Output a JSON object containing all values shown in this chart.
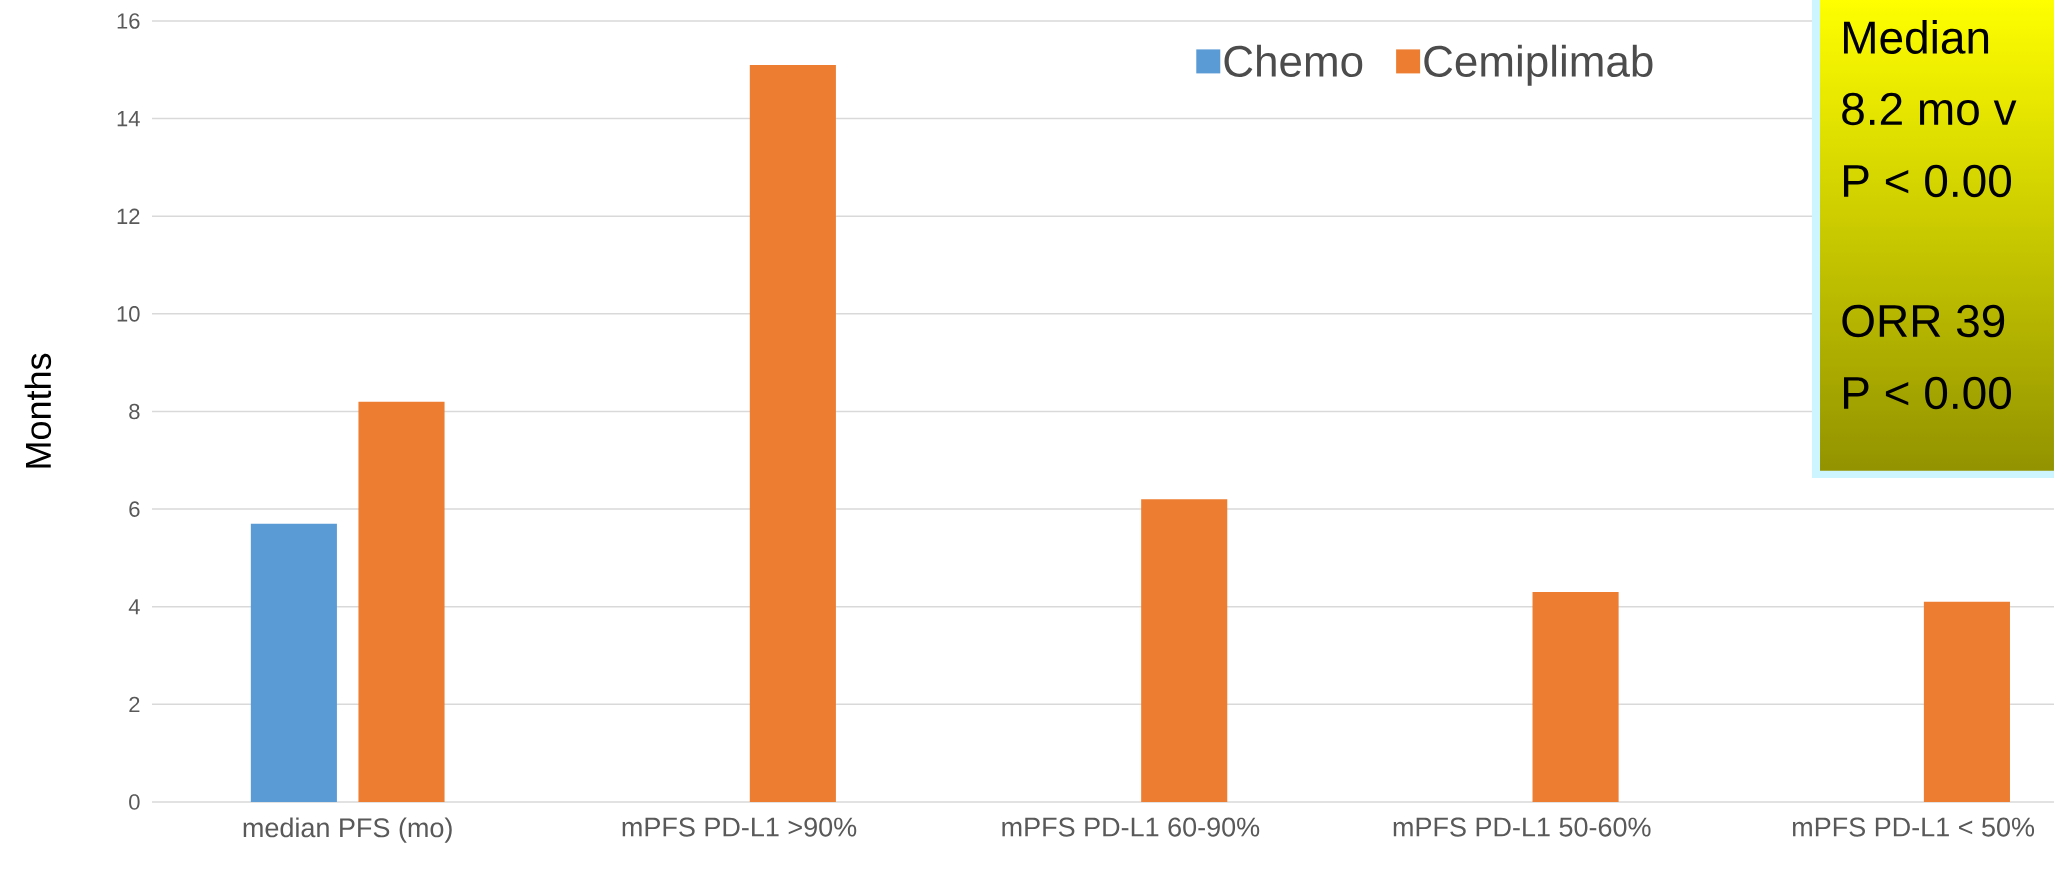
{
  "chart_data": {
    "type": "bar",
    "ylabel": "Months",
    "categories": [
      "median PFS (mo)",
      "mPFS PD-L1 >90%",
      "mPFS PD-L1 60-90%",
      "mPFS PD-L1 50-60%",
      "mPFS PD-L1 < 50%"
    ],
    "series": [
      {
        "name": "Chemo",
        "color": "#5b9bd5",
        "values": [
          5.7,
          null,
          null,
          null,
          null
        ]
      },
      {
        "name": "Cemiplimab",
        "color": "#ed7d31",
        "values": [
          8.2,
          15.1,
          6.2,
          4.3,
          4.1
        ]
      }
    ],
    "ylim": [
      0,
      16
    ],
    "yticks": [
      0,
      2,
      4,
      6,
      8,
      10,
      12,
      14,
      16
    ],
    "grid": "y",
    "legend": "top",
    "annotations": [
      "Median",
      "8.2 mo v",
      "P < 0.00",
      "ORR 39",
      "P < 0.00"
    ]
  }
}
